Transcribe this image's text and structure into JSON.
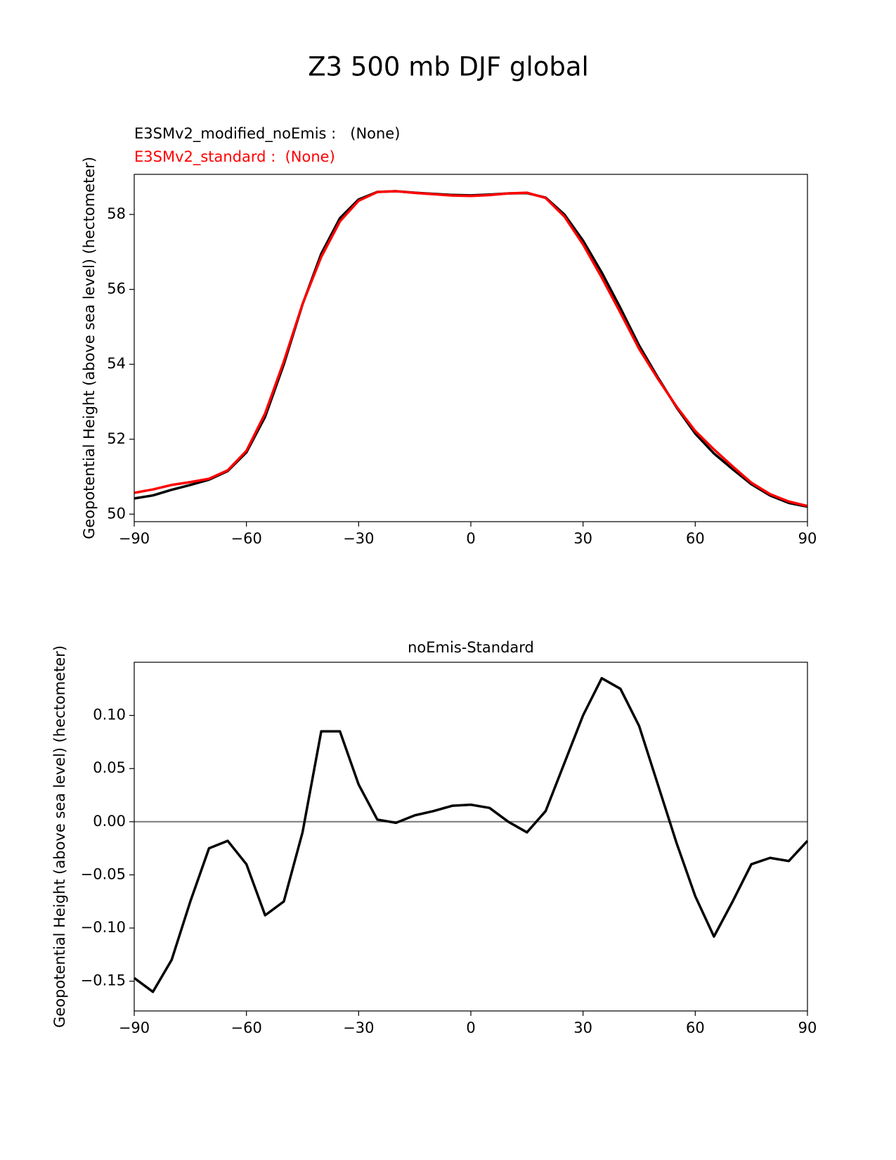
{
  "title": "Z3 500 mb DJF global",
  "chart_data": [
    {
      "type": "line",
      "ylabel": "Geopotential Height (above sea level) (hectometer)",
      "x": [
        -90,
        -85,
        -80,
        -75,
        -70,
        -65,
        -60,
        -55,
        -50,
        -45,
        -40,
        -35,
        -30,
        -25,
        -20,
        -15,
        -10,
        -5,
        0,
        5,
        10,
        15,
        20,
        25,
        30,
        35,
        40,
        45,
        50,
        55,
        60,
        65,
        70,
        75,
        80,
        85,
        90
      ],
      "series": [
        {
          "name": "E3SMv2_modified_noEmis :   (None)",
          "color": "black",
          "values": [
            50.42,
            50.5,
            50.65,
            50.78,
            50.92,
            51.15,
            51.65,
            52.6,
            54.0,
            55.6,
            56.95,
            57.9,
            58.4,
            58.6,
            58.62,
            58.58,
            58.55,
            58.52,
            58.51,
            58.53,
            58.56,
            58.57,
            58.45,
            58.0,
            57.3,
            56.45,
            55.5,
            54.5,
            53.65,
            52.85,
            52.15,
            51.62,
            51.2,
            50.8,
            50.5,
            50.3,
            50.2
          ]
        },
        {
          "name": "E3SMv2_standard :  (None)",
          "color": "red",
          "values": [
            50.57,
            50.66,
            50.78,
            50.855,
            50.945,
            51.17,
            51.69,
            52.69,
            54.075,
            55.61,
            56.865,
            57.815,
            58.365,
            58.598,
            58.621,
            58.574,
            58.54,
            58.505,
            58.494,
            58.517,
            58.56,
            58.58,
            58.44,
            57.945,
            57.2,
            56.315,
            55.375,
            54.41,
            53.615,
            52.87,
            52.22,
            51.728,
            51.275,
            50.84,
            50.534,
            50.337,
            50.218
          ]
        }
      ],
      "xlim": [
        -90,
        90
      ],
      "xticks": [
        {
          "value": -90,
          "label": "−90"
        },
        {
          "value": -60,
          "label": "−60"
        },
        {
          "value": -30,
          "label": "−30"
        },
        0,
        30,
        60,
        90
      ],
      "ylim": [
        49.8,
        59.07
      ],
      "yticks": [
        50,
        52,
        54,
        56,
        58
      ]
    },
    {
      "type": "line",
      "title": "noEmis-Standard",
      "ylabel": "Geopotential Height (above sea level) (hectometer)",
      "x": [
        -90,
        -85,
        -80,
        -75,
        -70,
        -65,
        -60,
        -55,
        -50,
        -45,
        -40,
        -35,
        -30,
        -25,
        -20,
        -15,
        -10,
        -5,
        0,
        5,
        10,
        15,
        20,
        25,
        30,
        35,
        40,
        45,
        50,
        55,
        60,
        65,
        70,
        75,
        80,
        85,
        90
      ],
      "series": [
        {
          "color": "black",
          "values": [
            -0.147,
            -0.16,
            -0.13,
            -0.075,
            -0.025,
            -0.018,
            -0.04,
            -0.088,
            -0.075,
            -0.01,
            0.085,
            0.085,
            0.035,
            0.002,
            -0.001,
            0.006,
            0.01,
            0.015,
            0.016,
            0.013,
            0.0,
            -0.01,
            0.01,
            0.055,
            0.1,
            0.135,
            0.125,
            0.09,
            0.035,
            -0.02,
            -0.07,
            -0.108,
            -0.075,
            -0.04,
            -0.034,
            -0.037,
            -0.018
          ]
        }
      ],
      "zero_line": true,
      "zero_line_color": "gray",
      "xlim": [
        -90,
        90
      ],
      "xticks": [
        {
          "value": -90,
          "label": "−90"
        },
        {
          "value": -60,
          "label": "−60"
        },
        {
          "value": -30,
          "label": "−30"
        },
        0,
        30,
        60,
        90
      ],
      "ylim": [
        -0.178,
        0.15
      ],
      "yticks": [
        {
          "value": -0.15,
          "label": "−0.15"
        },
        {
          "value": -0.1,
          "label": "−0.10"
        },
        {
          "value": -0.05,
          "label": "−0.05"
        },
        {
          "value": 0,
          "label": "0.00"
        },
        {
          "value": 0.05,
          "label": "0.05"
        },
        {
          "value": 0.1,
          "label": "0.10"
        }
      ]
    }
  ]
}
